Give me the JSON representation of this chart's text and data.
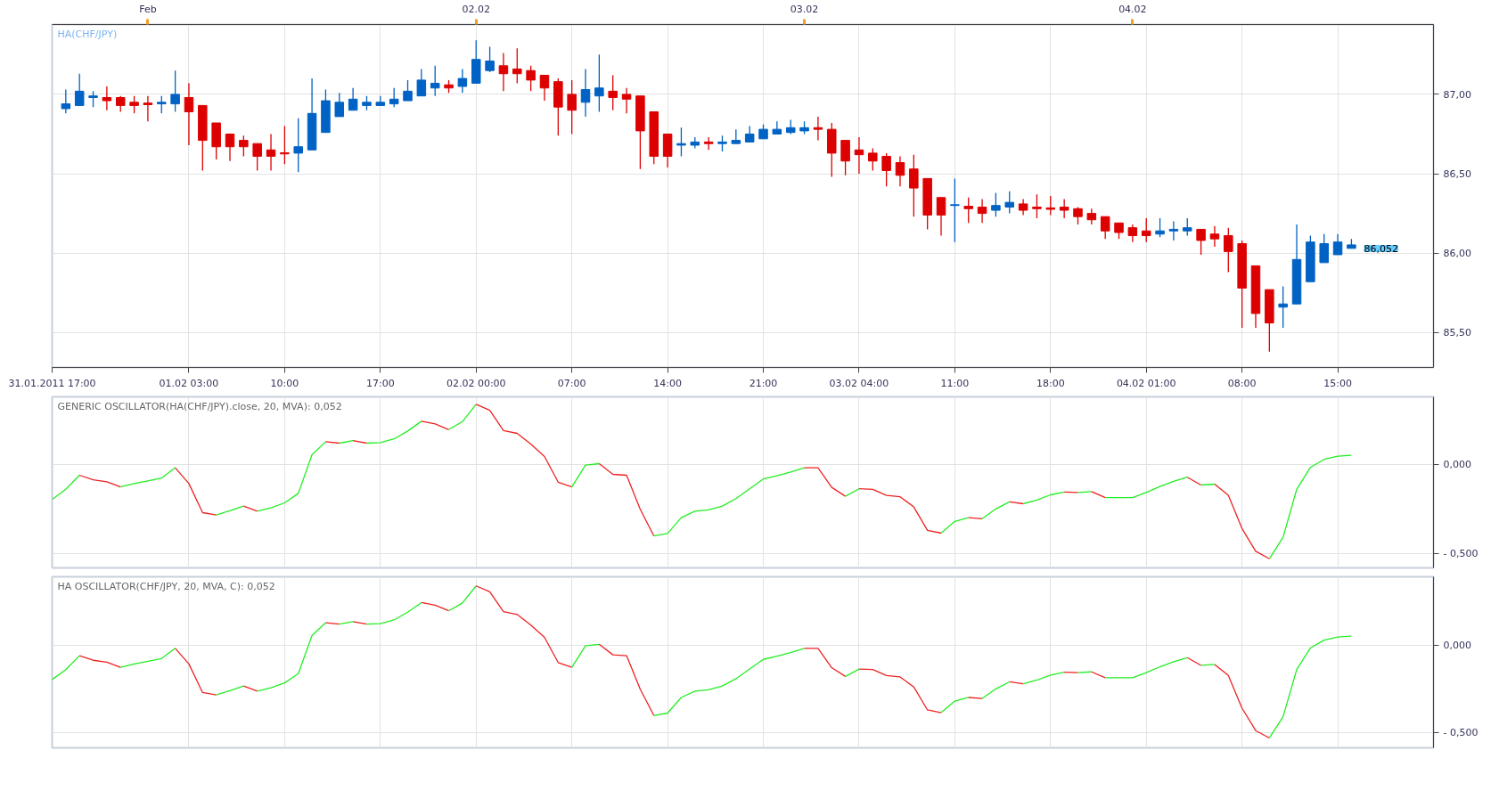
{
  "chart_data": [
    {
      "type": "candlestick",
      "title": "HA(CHF/JPY)",
      "x": [
        "2011-01-31T18:00",
        "2011-01-31T19:00",
        "2011-01-31T20:00",
        "2011-01-31T21:00",
        "2011-01-31T22:00",
        "2011-01-31T23:00",
        "2011-02-01T00:00",
        "2011-02-01T01:00",
        "2011-02-01T02:00",
        "2011-02-01T03:00",
        "2011-02-01T04:00",
        "2011-02-01T05:00",
        "2011-02-01T06:00",
        "2011-02-01T07:00",
        "2011-02-01T08:00",
        "2011-02-01T09:00",
        "2011-02-01T10:00",
        "2011-02-01T11:00",
        "2011-02-01T12:00",
        "2011-02-01T13:00",
        "2011-02-01T14:00",
        "2011-02-01T15:00",
        "2011-02-01T16:00",
        "2011-02-01T17:00",
        "2011-02-01T18:00",
        "2011-02-01T19:00",
        "2011-02-01T20:00",
        "2011-02-01T21:00",
        "2011-02-01T22:00",
        "2011-02-01T23:00",
        "2011-02-02T00:00",
        "2011-02-02T01:00",
        "2011-02-02T02:00",
        "2011-02-02T03:00",
        "2011-02-02T04:00",
        "2011-02-02T05:00",
        "2011-02-02T06:00",
        "2011-02-02T07:00",
        "2011-02-02T08:00",
        "2011-02-02T09:00",
        "2011-02-02T10:00",
        "2011-02-02T11:00",
        "2011-02-02T12:00",
        "2011-02-02T13:00",
        "2011-02-02T14:00",
        "2011-02-02T15:00",
        "2011-02-02T16:00",
        "2011-02-02T17:00",
        "2011-02-02T18:00",
        "2011-02-02T19:00",
        "2011-02-02T20:00",
        "2011-02-02T21:00",
        "2011-02-02T22:00",
        "2011-02-02T23:00",
        "2011-02-03T00:00",
        "2011-02-03T01:00",
        "2011-02-03T02:00",
        "2011-02-03T03:00",
        "2011-02-03T04:00",
        "2011-02-03T05:00",
        "2011-02-03T06:00",
        "2011-02-03T07:00",
        "2011-02-03T08:00",
        "2011-02-03T09:00",
        "2011-02-03T10:00",
        "2011-02-03T11:00",
        "2011-02-03T12:00",
        "2011-02-03T13:00",
        "2011-02-03T14:00",
        "2011-02-03T15:00",
        "2011-02-03T16:00",
        "2011-02-03T17:00",
        "2011-02-03T18:00",
        "2011-02-03T19:00",
        "2011-02-03T20:00",
        "2011-02-03T21:00",
        "2011-02-03T22:00",
        "2011-02-03T23:00",
        "2011-02-04T00:00",
        "2011-02-04T01:00",
        "2011-02-04T02:00",
        "2011-02-04T03:00",
        "2011-02-04T04:00",
        "2011-02-04T05:00",
        "2011-02-04T06:00",
        "2011-02-04T07:00",
        "2011-02-04T08:00",
        "2011-02-04T09:00",
        "2011-02-04T10:00",
        "2011-02-04T11:00",
        "2011-02-04T12:00",
        "2011-02-04T13:00",
        "2011-02-04T14:00",
        "2011-02-04T15:00",
        "2011-02-04T16:00"
      ],
      "ohlc": [
        [
          86.91,
          87.03,
          86.88,
          86.94
        ],
        [
          86.93,
          87.13,
          86.93,
          87.02
        ],
        [
          86.98,
          87.02,
          86.92,
          86.99
        ],
        [
          86.98,
          87.05,
          86.9,
          86.96
        ],
        [
          86.98,
          86.99,
          86.89,
          86.93
        ],
        [
          86.95,
          86.99,
          86.88,
          86.93
        ],
        [
          86.945,
          86.99,
          86.83,
          86.935
        ],
        [
          86.94,
          86.99,
          86.88,
          86.95
        ],
        [
          86.94,
          87.15,
          86.89,
          87.0
        ],
        [
          86.98,
          87.07,
          86.68,
          86.89
        ],
        [
          86.93,
          86.93,
          86.52,
          86.71
        ],
        [
          86.82,
          86.82,
          86.59,
          86.67
        ],
        [
          86.75,
          86.75,
          86.58,
          86.67
        ],
        [
          86.71,
          86.74,
          86.61,
          86.67
        ],
        [
          86.69,
          86.69,
          86.52,
          86.61
        ],
        [
          86.65,
          86.75,
          86.52,
          86.61
        ],
        [
          86.632,
          86.8,
          86.56,
          86.625
        ],
        [
          86.63,
          86.85,
          86.51,
          86.67
        ],
        [
          86.65,
          87.1,
          86.65,
          86.88
        ],
        [
          86.76,
          87.03,
          86.76,
          86.96
        ],
        [
          86.86,
          87.01,
          86.86,
          86.95
        ],
        [
          86.9,
          87.04,
          86.9,
          86.97
        ],
        [
          86.93,
          86.99,
          86.9,
          86.95
        ],
        [
          86.93,
          86.99,
          86.93,
          86.95
        ],
        [
          86.94,
          87.04,
          86.92,
          86.97
        ],
        [
          86.96,
          87.09,
          86.96,
          87.02
        ],
        [
          86.99,
          87.16,
          86.99,
          87.09
        ],
        [
          87.04,
          87.18,
          86.99,
          87.07
        ],
        [
          87.06,
          87.09,
          87.01,
          87.04
        ],
        [
          87.05,
          87.16,
          87.01,
          87.1
        ],
        [
          87.07,
          87.34,
          87.07,
          87.22
        ],
        [
          87.15,
          87.3,
          87.14,
          87.21
        ],
        [
          87.18,
          87.26,
          87.02,
          87.13
        ],
        [
          87.16,
          87.29,
          87.07,
          87.13
        ],
        [
          87.15,
          87.18,
          87.02,
          87.09
        ],
        [
          87.12,
          87.12,
          86.96,
          87.04
        ],
        [
          87.08,
          87.1,
          86.74,
          86.92
        ],
        [
          87.0,
          87.09,
          86.75,
          86.9
        ],
        [
          86.95,
          87.16,
          86.86,
          87.03
        ],
        [
          86.99,
          87.25,
          86.89,
          87.04
        ],
        [
          87.02,
          87.12,
          86.9,
          86.98
        ],
        [
          87.0,
          87.04,
          86.88,
          86.97
        ],
        [
          86.99,
          86.99,
          86.53,
          86.77
        ],
        [
          86.89,
          86.89,
          86.56,
          86.61
        ],
        [
          86.75,
          86.75,
          86.54,
          86.61
        ],
        [
          86.68,
          86.79,
          86.61,
          86.69
        ],
        [
          86.68,
          86.73,
          86.66,
          86.7
        ],
        [
          86.7,
          86.73,
          86.65,
          86.69
        ],
        [
          86.69,
          86.74,
          86.64,
          86.7
        ],
        [
          86.69,
          86.78,
          86.69,
          86.71
        ],
        [
          86.7,
          86.8,
          86.7,
          86.75
        ],
        [
          86.72,
          86.81,
          86.72,
          86.78
        ],
        [
          86.75,
          86.83,
          86.75,
          86.78
        ],
        [
          86.76,
          86.84,
          86.75,
          86.79
        ],
        [
          86.77,
          86.83,
          86.75,
          86.79
        ],
        [
          86.79,
          86.86,
          86.71,
          86.78
        ],
        [
          86.78,
          86.82,
          86.48,
          86.63
        ],
        [
          86.71,
          86.71,
          86.49,
          86.58
        ],
        [
          86.65,
          86.73,
          86.5,
          86.62
        ],
        [
          86.63,
          86.66,
          86.52,
          86.58
        ],
        [
          86.61,
          86.63,
          86.42,
          86.52
        ],
        [
          86.57,
          86.61,
          86.42,
          86.49
        ],
        [
          86.53,
          86.62,
          86.23,
          86.41
        ],
        [
          86.47,
          86.47,
          86.15,
          86.24
        ],
        [
          86.35,
          86.35,
          86.11,
          86.24
        ],
        [
          86.3,
          86.47,
          86.07,
          86.305
        ],
        [
          86.295,
          86.35,
          86.19,
          86.28
        ],
        [
          86.29,
          86.34,
          86.19,
          86.25
        ],
        [
          86.27,
          86.38,
          86.23,
          86.3
        ],
        [
          86.29,
          86.39,
          86.25,
          86.32
        ],
        [
          86.31,
          86.34,
          86.24,
          86.27
        ],
        [
          86.29,
          86.37,
          86.22,
          86.28
        ],
        [
          86.285,
          86.36,
          86.24,
          86.276
        ],
        [
          86.29,
          86.34,
          86.22,
          86.27
        ],
        [
          86.28,
          86.29,
          86.18,
          86.23
        ],
        [
          86.25,
          86.28,
          86.18,
          86.21
        ],
        [
          86.23,
          86.23,
          86.09,
          86.14
        ],
        [
          86.19,
          86.19,
          86.09,
          86.13
        ],
        [
          86.16,
          86.18,
          86.07,
          86.11
        ],
        [
          86.14,
          86.22,
          86.07,
          86.11
        ],
        [
          86.12,
          86.22,
          86.1,
          86.14
        ],
        [
          86.14,
          86.2,
          86.08,
          86.15
        ],
        [
          86.14,
          86.22,
          86.11,
          86.16
        ],
        [
          86.15,
          86.15,
          85.99,
          86.08
        ],
        [
          86.12,
          86.17,
          86.04,
          86.09
        ],
        [
          86.11,
          86.16,
          85.88,
          86.01
        ],
        [
          86.06,
          86.08,
          85.53,
          85.78
        ],
        [
          85.92,
          85.92,
          85.53,
          85.62
        ],
        [
          85.77,
          85.77,
          85.38,
          85.56
        ],
        [
          85.66,
          85.79,
          85.53,
          85.68
        ],
        [
          85.68,
          86.18,
          85.68,
          85.96
        ],
        [
          85.82,
          86.11,
          85.82,
          86.07
        ],
        [
          85.94,
          86.12,
          85.94,
          86.06
        ],
        [
          85.99,
          86.12,
          85.99,
          86.07
        ],
        [
          86.03,
          86.09,
          86.03,
          86.052
        ]
      ],
      "colors": [
        "#0062c4",
        "#0062c4",
        "#0062c4",
        "#dd0000",
        "#dd0000",
        "#dd0000",
        "#dd0000",
        "#0062c4",
        "#0062c4",
        "#dd0000",
        "#dd0000",
        "#dd0000",
        "#dd0000",
        "#dd0000",
        "#dd0000",
        "#dd0000",
        "#dd0000",
        "#0062c4",
        "#0062c4",
        "#0062c4",
        "#0062c4",
        "#0062c4",
        "#0062c4",
        "#0062c4",
        "#0062c4",
        "#0062c4",
        "#0062c4",
        "#0062c4",
        "#dd0000",
        "#0062c4",
        "#0062c4",
        "#0062c4",
        "#dd0000",
        "#dd0000",
        "#dd0000",
        "#dd0000",
        "#dd0000",
        "#dd0000",
        "#0062c4",
        "#0062c4",
        "#dd0000",
        "#dd0000",
        "#dd0000",
        "#dd0000",
        "#dd0000",
        "#0062c4",
        "#0062c4",
        "#dd0000",
        "#0062c4",
        "#0062c4",
        "#0062c4",
        "#0062c4",
        "#0062c4",
        "#0062c4",
        "#0062c4",
        "#dd0000",
        "#dd0000",
        "#dd0000",
        "#dd0000",
        "#dd0000",
        "#dd0000",
        "#dd0000",
        "#dd0000",
        "#dd0000",
        "#dd0000",
        "#0062c4",
        "#dd0000",
        "#dd0000",
        "#0062c4",
        "#0062c4",
        "#dd0000",
        "#dd0000",
        "#dd0000",
        "#dd0000",
        "#dd0000",
        "#dd0000",
        "#dd0000",
        "#dd0000",
        "#dd0000",
        "#dd0000",
        "#0062c4",
        "#0062c4",
        "#0062c4",
        "#dd0000",
        "#dd0000",
        "#dd0000",
        "#dd0000",
        "#dd0000",
        "#dd0000",
        "#0062c4",
        "#0062c4",
        "#0062c4",
        "#0062c4",
        "#0062c4",
        "#0062c4"
      ],
      "xlim": [
        "2011-01-31T17:00",
        "2011-02-04T22:00"
      ],
      "xticks": [
        {
          "value": "2011-01-31T17:00",
          "label": "31.01.2011 17:00"
        },
        {
          "value": "2011-02-01T03:00",
          "label": "01.02 03:00"
        },
        {
          "value": "2011-02-01T10:00",
          "label": "10:00"
        },
        {
          "value": "2011-02-01T17:00",
          "label": "17:00"
        },
        {
          "value": "2011-02-02T00:00",
          "label": "02.02 00:00"
        },
        {
          "value": "2011-02-02T07:00",
          "label": "07:00"
        },
        {
          "value": "2011-02-02T14:00",
          "label": "14:00"
        },
        {
          "value": "2011-02-02T21:00",
          "label": "21:00"
        },
        {
          "value": "2011-02-03T04:00",
          "label": "03.02 04:00"
        },
        {
          "value": "2011-02-03T11:00",
          "label": "11:00"
        },
        {
          "value": "2011-02-03T18:00",
          "label": "18:00"
        },
        {
          "value": "2011-02-04T01:00",
          "label": "04.02 01:00"
        },
        {
          "value": "2011-02-04T08:00",
          "label": "08:00"
        },
        {
          "value": "2011-02-04T15:00",
          "label": "15:00"
        }
      ],
      "x2lim": [
        "2011-01-31T17:00",
        "2011-02-04T22:00"
      ],
      "x2ticks": [
        {
          "value": "2011-02-01T00:00",
          "label": "Feb"
        },
        {
          "value": "2011-02-02T00:00",
          "label": "02.02"
        },
        {
          "value": "2011-02-03T00:00",
          "label": "03.02"
        },
        {
          "value": "2011-02-04T00:00",
          "label": "04.02"
        }
      ],
      "ylim": [
        85.28,
        87.44
      ],
      "yticks": [
        {
          "value": 85.5,
          "label": "85,50"
        },
        {
          "value": 86,
          "label": "86,00"
        },
        {
          "value": 86.5,
          "label": "86,50"
        },
        {
          "value": 87,
          "label": "87,00"
        }
      ],
      "grid": true,
      "annotations": [
        {
          "text": "86,052",
          "x": "2011-02-04T16:00",
          "y": 86.052
        }
      ]
    },
    {
      "type": "line",
      "title": "GENERIC OSCILLATOR(HA(CHF/JPY).close, 20, MVA): 0,052",
      "series": [
        {
          "color": "#22ee22",
          "x": [
            "2011-01-31T17:00",
            "2011-01-31T18:00",
            "2011-01-31T19:00"
          ],
          "values": [
            -0.196,
            -0.139,
            -0.06
          ]
        },
        {
          "color": "#ee2222",
          "x": [
            "2011-01-31T19:00",
            "2011-01-31T20:00",
            "2011-01-31T21:00",
            "2011-01-31T22:00"
          ],
          "values": [
            -0.06,
            -0.086,
            -0.097,
            -0.126
          ]
        },
        {
          "color": "#22ee22",
          "x": [
            "2011-01-31T22:00",
            "2011-01-31T23:00",
            "2011-02-01T00:00",
            "2011-02-01T01:00",
            "2011-02-01T02:00"
          ],
          "values": [
            -0.126,
            -0.107,
            -0.092,
            -0.076,
            -0.018
          ]
        },
        {
          "color": "#ee2222",
          "x": [
            "2011-02-01T02:00",
            "2011-02-01T03:00",
            "2011-02-01T04:00",
            "2011-02-01T05:00"
          ],
          "values": [
            -0.018,
            -0.107,
            -0.27,
            -0.283
          ]
        },
        {
          "color": "#22ee22",
          "x": [
            "2011-02-01T05:00",
            "2011-02-01T06:00",
            "2011-02-01T07:00"
          ],
          "values": [
            -0.283,
            -0.259,
            -0.233
          ]
        },
        {
          "color": "#ee2222",
          "x": [
            "2011-02-01T07:00",
            "2011-02-01T08:00"
          ],
          "values": [
            -0.233,
            -0.262
          ]
        },
        {
          "color": "#22ee22",
          "x": [
            "2011-02-01T08:00",
            "2011-02-01T09:00",
            "2011-02-01T10:00",
            "2011-02-01T11:00",
            "2011-02-01T12:00",
            "2011-02-01T13:00"
          ],
          "values": [
            -0.262,
            -0.243,
            -0.215,
            -0.162,
            0.055,
            0.128
          ]
        },
        {
          "color": "#ee2222",
          "x": [
            "2011-02-01T13:00",
            "2011-02-01T14:00"
          ],
          "values": [
            0.128,
            0.12
          ]
        },
        {
          "color": "#22ee22",
          "x": [
            "2011-02-01T14:00",
            "2011-02-01T15:00"
          ],
          "values": [
            0.12,
            0.134
          ]
        },
        {
          "color": "#ee2222",
          "x": [
            "2011-02-01T15:00",
            "2011-02-01T16:00"
          ],
          "values": [
            0.134,
            0.12
          ]
        },
        {
          "color": "#22ee22",
          "x": [
            "2011-02-01T16:00",
            "2011-02-01T17:00",
            "2011-02-01T18:00",
            "2011-02-01T19:00",
            "2011-02-01T20:00"
          ],
          "values": [
            0.12,
            0.123,
            0.144,
            0.188,
            0.243
          ]
        },
        {
          "color": "#ee2222",
          "x": [
            "2011-02-01T20:00",
            "2011-02-01T21:00",
            "2011-02-01T22:00"
          ],
          "values": [
            0.243,
            0.228,
            0.196
          ]
        },
        {
          "color": "#22ee22",
          "x": [
            "2011-02-01T22:00",
            "2011-02-01T23:00",
            "2011-02-02T00:00"
          ],
          "values": [
            0.196,
            0.241,
            0.338
          ]
        },
        {
          "color": "#ee2222",
          "x": [
            "2011-02-02T00:00",
            "2011-02-02T01:00",
            "2011-02-02T02:00",
            "2011-02-02T03:00",
            "2011-02-02T04:00",
            "2011-02-02T05:00",
            "2011-02-02T06:00",
            "2011-02-02T07:00"
          ],
          "values": [
            0.338,
            0.304,
            0.191,
            0.175,
            0.115,
            0.045,
            -0.099,
            -0.126
          ]
        },
        {
          "color": "#22ee22",
          "x": [
            "2011-02-02T07:00",
            "2011-02-02T08:00",
            "2011-02-02T09:00"
          ],
          "values": [
            -0.126,
            -0.003,
            0.005
          ]
        },
        {
          "color": "#ee2222",
          "x": [
            "2011-02-02T09:00",
            "2011-02-02T10:00",
            "2011-02-02T11:00",
            "2011-02-02T12:00",
            "2011-02-02T13:00"
          ],
          "values": [
            0.005,
            -0.055,
            -0.06,
            -0.251,
            -0.401
          ]
        },
        {
          "color": "#22ee22",
          "x": [
            "2011-02-02T13:00",
            "2011-02-02T14:00",
            "2011-02-02T15:00",
            "2011-02-02T16:00",
            "2011-02-02T17:00",
            "2011-02-02T18:00",
            "2011-02-02T19:00",
            "2011-02-02T20:00",
            "2011-02-02T21:00",
            "2011-02-02T22:00",
            "2011-02-02T23:00",
            "2011-02-03T00:00"
          ],
          "values": [
            -0.401,
            -0.387,
            -0.298,
            -0.262,
            -0.254,
            -0.233,
            -0.191,
            -0.136,
            -0.081,
            -0.063,
            -0.042,
            -0.018
          ]
        },
        {
          "color": "#ee2222",
          "x": [
            "2011-02-03T00:00",
            "2011-02-03T01:00",
            "2011-02-03T02:00",
            "2011-02-03T03:00"
          ],
          "values": [
            -0.018,
            -0.018,
            -0.128,
            -0.178
          ]
        },
        {
          "color": "#22ee22",
          "x": [
            "2011-02-03T03:00",
            "2011-02-03T04:00"
          ],
          "values": [
            -0.178,
            -0.136
          ]
        },
        {
          "color": "#ee2222",
          "x": [
            "2011-02-03T04:00",
            "2011-02-03T05:00",
            "2011-02-03T06:00",
            "2011-02-03T07:00",
            "2011-02-03T08:00",
            "2011-02-03T09:00",
            "2011-02-03T10:00"
          ],
          "values": [
            -0.136,
            -0.139,
            -0.173,
            -0.181,
            -0.238,
            -0.369,
            -0.385
          ]
        },
        {
          "color": "#22ee22",
          "x": [
            "2011-02-03T10:00",
            "2011-02-03T11:00",
            "2011-02-03T12:00"
          ],
          "values": [
            -0.385,
            -0.319,
            -0.298
          ]
        },
        {
          "color": "#ee2222",
          "x": [
            "2011-02-03T12:00",
            "2011-02-03T13:00"
          ],
          "values": [
            -0.298,
            -0.304
          ]
        },
        {
          "color": "#22ee22",
          "x": [
            "2011-02-03T13:00",
            "2011-02-03T14:00",
            "2011-02-03T15:00"
          ],
          "values": [
            -0.304,
            -0.249,
            -0.209
          ]
        },
        {
          "color": "#ee2222",
          "x": [
            "2011-02-03T15:00",
            "2011-02-03T16:00"
          ],
          "values": [
            -0.209,
            -0.22
          ]
        },
        {
          "color": "#22ee22",
          "x": [
            "2011-02-03T16:00",
            "2011-02-03T17:00",
            "2011-02-03T18:00",
            "2011-02-03T19:00"
          ],
          "values": [
            -0.22,
            -0.199,
            -0.17,
            -0.154
          ]
        },
        {
          "color": "#ee2222",
          "x": [
            "2011-02-03T19:00",
            "2011-02-03T20:00"
          ],
          "values": [
            -0.154,
            -0.157
          ]
        },
        {
          "color": "#22ee22",
          "x": [
            "2011-02-03T20:00",
            "2011-02-03T21:00"
          ],
          "values": [
            -0.157,
            -0.152
          ]
        },
        {
          "color": "#ee2222",
          "x": [
            "2011-02-03T21:00",
            "2011-02-03T22:00"
          ],
          "values": [
            -0.152,
            -0.186
          ]
        },
        {
          "color": "#22ee22",
          "x": [
            "2011-02-03T22:00",
            "2011-02-03T23:00",
            "2011-02-04T00:00",
            "2011-02-04T01:00",
            "2011-02-04T02:00",
            "2011-02-04T03:00",
            "2011-02-04T04:00"
          ],
          "values": [
            -0.186,
            -0.186,
            -0.186,
            -0.157,
            -0.123,
            -0.094,
            -0.071
          ]
        },
        {
          "color": "#ee2222",
          "x": [
            "2011-02-04T04:00",
            "2011-02-04T05:00"
          ],
          "values": [
            -0.071,
            -0.115
          ]
        },
        {
          "color": "#22ee22",
          "x": [
            "2011-02-04T05:00",
            "2011-02-04T06:00"
          ],
          "values": [
            -0.115,
            -0.11
          ]
        },
        {
          "color": "#ee2222",
          "x": [
            "2011-02-04T06:00",
            "2011-02-04T07:00",
            "2011-02-04T08:00",
            "2011-02-04T09:00",
            "2011-02-04T10:00"
          ],
          "values": [
            -0.11,
            -0.173,
            -0.359,
            -0.487,
            -0.529
          ]
        },
        {
          "color": "#22ee22",
          "x": [
            "2011-02-04T10:00",
            "2011-02-04T11:00",
            "2011-02-04T12:00",
            "2011-02-04T13:00",
            "2011-02-04T14:00",
            "2011-02-04T15:00",
            "2011-02-04T16:00"
          ],
          "values": [
            -0.529,
            -0.408,
            -0.139,
            -0.016,
            0.029,
            0.047,
            0.052
          ]
        }
      ],
      "xlim": [
        "2011-01-31T17:00",
        "2011-02-04T22:00"
      ],
      "xticks": [
        {
          "value": "2011-02-01T03:00",
          "label": null
        },
        {
          "value": "2011-02-01T10:00",
          "label": null
        },
        {
          "value": "2011-02-01T17:00",
          "label": null
        },
        {
          "value": "2011-02-02T00:00",
          "label": null
        },
        {
          "value": "2011-02-02T07:00",
          "label": null
        },
        {
          "value": "2011-02-02T14:00",
          "label": null
        },
        {
          "value": "2011-02-02T21:00",
          "label": null
        },
        {
          "value": "2011-02-03T04:00",
          "label": null
        },
        {
          "value": "2011-02-03T11:00",
          "label": null
        },
        {
          "value": "2011-02-03T18:00",
          "label": null
        },
        {
          "value": "2011-02-04T01:00",
          "label": null
        },
        {
          "value": "2011-02-04T08:00",
          "label": null
        },
        {
          "value": "2011-02-04T15:00",
          "label": null
        }
      ],
      "ylim": [
        -0.58,
        0.38
      ],
      "yticks": [
        {
          "value": -0.5,
          "label": "- 0,500"
        },
        {
          "value": 0,
          "label": "0,000"
        }
      ],
      "grid": true,
      "tick_labels": "y"
    },
    {
      "type": "line",
      "title": "HA  OSCILLATOR(CHF/JPY, 20, MVA, C): 0,052",
      "series": [
        {
          "color": "#22ee22",
          "x": [
            "2011-01-31T17:00",
            "2011-01-31T18:00",
            "2011-01-31T19:00"
          ],
          "values": [
            -0.196,
            -0.139,
            -0.06
          ]
        },
        {
          "color": "#ee2222",
          "x": [
            "2011-01-31T19:00",
            "2011-01-31T20:00",
            "2011-01-31T21:00",
            "2011-01-31T22:00"
          ],
          "values": [
            -0.06,
            -0.086,
            -0.097,
            -0.126
          ]
        },
        {
          "color": "#22ee22",
          "x": [
            "2011-01-31T22:00",
            "2011-01-31T23:00",
            "2011-02-01T00:00",
            "2011-02-01T01:00",
            "2011-02-01T02:00"
          ],
          "values": [
            -0.126,
            -0.107,
            -0.092,
            -0.076,
            -0.018
          ]
        },
        {
          "color": "#ee2222",
          "x": [
            "2011-02-01T02:00",
            "2011-02-01T03:00",
            "2011-02-01T04:00",
            "2011-02-01T05:00"
          ],
          "values": [
            -0.018,
            -0.107,
            -0.27,
            -0.283
          ]
        },
        {
          "color": "#22ee22",
          "x": [
            "2011-02-01T05:00",
            "2011-02-01T06:00",
            "2011-02-01T07:00"
          ],
          "values": [
            -0.283,
            -0.259,
            -0.233
          ]
        },
        {
          "color": "#ee2222",
          "x": [
            "2011-02-01T07:00",
            "2011-02-01T08:00"
          ],
          "values": [
            -0.233,
            -0.262
          ]
        },
        {
          "color": "#22ee22",
          "x": [
            "2011-02-01T08:00",
            "2011-02-01T09:00",
            "2011-02-01T10:00",
            "2011-02-01T11:00",
            "2011-02-01T12:00",
            "2011-02-01T13:00"
          ],
          "values": [
            -0.262,
            -0.243,
            -0.215,
            -0.162,
            0.055,
            0.128
          ]
        },
        {
          "color": "#ee2222",
          "x": [
            "2011-02-01T13:00",
            "2011-02-01T14:00"
          ],
          "values": [
            0.128,
            0.12
          ]
        },
        {
          "color": "#22ee22",
          "x": [
            "2011-02-01T14:00",
            "2011-02-01T15:00"
          ],
          "values": [
            0.12,
            0.134
          ]
        },
        {
          "color": "#ee2222",
          "x": [
            "2011-02-01T15:00",
            "2011-02-01T16:00"
          ],
          "values": [
            0.134,
            0.12
          ]
        },
        {
          "color": "#22ee22",
          "x": [
            "2011-02-01T16:00",
            "2011-02-01T17:00",
            "2011-02-01T18:00",
            "2011-02-01T19:00",
            "2011-02-01T20:00"
          ],
          "values": [
            0.12,
            0.123,
            0.144,
            0.188,
            0.243
          ]
        },
        {
          "color": "#ee2222",
          "x": [
            "2011-02-01T20:00",
            "2011-02-01T21:00",
            "2011-02-01T22:00"
          ],
          "values": [
            0.243,
            0.228,
            0.196
          ]
        },
        {
          "color": "#22ee22",
          "x": [
            "2011-02-01T22:00",
            "2011-02-01T23:00",
            "2011-02-02T00:00"
          ],
          "values": [
            0.196,
            0.241,
            0.338
          ]
        },
        {
          "color": "#ee2222",
          "x": [
            "2011-02-02T00:00",
            "2011-02-02T01:00",
            "2011-02-02T02:00",
            "2011-02-02T03:00",
            "2011-02-02T04:00",
            "2011-02-02T05:00",
            "2011-02-02T06:00",
            "2011-02-02T07:00"
          ],
          "values": [
            0.338,
            0.304,
            0.191,
            0.175,
            0.115,
            0.045,
            -0.099,
            -0.126
          ]
        },
        {
          "color": "#22ee22",
          "x": [
            "2011-02-02T07:00",
            "2011-02-02T08:00",
            "2011-02-02T09:00"
          ],
          "values": [
            -0.126,
            -0.003,
            0.005
          ]
        },
        {
          "color": "#ee2222",
          "x": [
            "2011-02-02T09:00",
            "2011-02-02T10:00",
            "2011-02-02T11:00",
            "2011-02-02T12:00",
            "2011-02-02T13:00"
          ],
          "values": [
            0.005,
            -0.055,
            -0.06,
            -0.251,
            -0.401
          ]
        },
        {
          "color": "#22ee22",
          "x": [
            "2011-02-02T13:00",
            "2011-02-02T14:00",
            "2011-02-02T15:00",
            "2011-02-02T16:00",
            "2011-02-02T17:00",
            "2011-02-02T18:00",
            "2011-02-02T19:00",
            "2011-02-02T20:00",
            "2011-02-02T21:00",
            "2011-02-02T22:00",
            "2011-02-02T23:00",
            "2011-02-03T00:00"
          ],
          "values": [
            -0.401,
            -0.387,
            -0.298,
            -0.262,
            -0.254,
            -0.233,
            -0.191,
            -0.136,
            -0.081,
            -0.063,
            -0.042,
            -0.018
          ]
        },
        {
          "color": "#ee2222",
          "x": [
            "2011-02-03T00:00",
            "2011-02-03T01:00",
            "2011-02-03T02:00",
            "2011-02-03T03:00"
          ],
          "values": [
            -0.018,
            -0.018,
            -0.128,
            -0.178
          ]
        },
        {
          "color": "#22ee22",
          "x": [
            "2011-02-03T03:00",
            "2011-02-03T04:00"
          ],
          "values": [
            -0.178,
            -0.136
          ]
        },
        {
          "color": "#ee2222",
          "x": [
            "2011-02-03T04:00",
            "2011-02-03T05:00",
            "2011-02-03T06:00",
            "2011-02-03T07:00",
            "2011-02-03T08:00",
            "2011-02-03T09:00",
            "2011-02-03T10:00"
          ],
          "values": [
            -0.136,
            -0.139,
            -0.173,
            -0.181,
            -0.238,
            -0.369,
            -0.385
          ]
        },
        {
          "color": "#22ee22",
          "x": [
            "2011-02-03T10:00",
            "2011-02-03T11:00",
            "2011-02-03T12:00"
          ],
          "values": [
            -0.385,
            -0.319,
            -0.298
          ]
        },
        {
          "color": "#ee2222",
          "x": [
            "2011-02-03T12:00",
            "2011-02-03T13:00"
          ],
          "values": [
            -0.298,
            -0.304
          ]
        },
        {
          "color": "#22ee22",
          "x": [
            "2011-02-03T13:00",
            "2011-02-03T14:00",
            "2011-02-03T15:00"
          ],
          "values": [
            -0.304,
            -0.249,
            -0.209
          ]
        },
        {
          "color": "#ee2222",
          "x": [
            "2011-02-03T15:00",
            "2011-02-03T16:00"
          ],
          "values": [
            -0.209,
            -0.22
          ]
        },
        {
          "color": "#22ee22",
          "x": [
            "2011-02-03T16:00",
            "2011-02-03T17:00",
            "2011-02-03T18:00",
            "2011-02-03T19:00"
          ],
          "values": [
            -0.22,
            -0.199,
            -0.17,
            -0.154
          ]
        },
        {
          "color": "#ee2222",
          "x": [
            "2011-02-03T19:00",
            "2011-02-03T20:00"
          ],
          "values": [
            -0.154,
            -0.157
          ]
        },
        {
          "color": "#22ee22",
          "x": [
            "2011-02-03T20:00",
            "2011-02-03T21:00"
          ],
          "values": [
            -0.157,
            -0.152
          ]
        },
        {
          "color": "#ee2222",
          "x": [
            "2011-02-03T21:00",
            "2011-02-03T22:00"
          ],
          "values": [
            -0.152,
            -0.186
          ]
        },
        {
          "color": "#22ee22",
          "x": [
            "2011-02-03T22:00",
            "2011-02-03T23:00",
            "2011-02-04T00:00",
            "2011-02-04T01:00",
            "2011-02-04T02:00",
            "2011-02-04T03:00",
            "2011-02-04T04:00"
          ],
          "values": [
            -0.186,
            -0.186,
            -0.186,
            -0.157,
            -0.123,
            -0.094,
            -0.071
          ]
        },
        {
          "color": "#ee2222",
          "x": [
            "2011-02-04T04:00",
            "2011-02-04T05:00"
          ],
          "values": [
            -0.071,
            -0.115
          ]
        },
        {
          "color": "#22ee22",
          "x": [
            "2011-02-04T05:00",
            "2011-02-04T06:00"
          ],
          "values": [
            -0.115,
            -0.11
          ]
        },
        {
          "color": "#ee2222",
          "x": [
            "2011-02-04T06:00",
            "2011-02-04T07:00",
            "2011-02-04T08:00",
            "2011-02-04T09:00",
            "2011-02-04T10:00"
          ],
          "values": [
            -0.11,
            -0.173,
            -0.359,
            -0.487,
            -0.529
          ]
        },
        {
          "color": "#22ee22",
          "x": [
            "2011-02-04T10:00",
            "2011-02-04T11:00",
            "2011-02-04T12:00",
            "2011-02-04T13:00",
            "2011-02-04T14:00",
            "2011-02-04T15:00",
            "2011-02-04T16:00"
          ],
          "values": [
            -0.529,
            -0.408,
            -0.139,
            -0.016,
            0.029,
            0.047,
            0.052
          ]
        }
      ],
      "xlim": [
        "2011-01-31T17:00",
        "2011-02-04T22:00"
      ],
      "xticks": [
        {
          "value": "2011-02-01T03:00",
          "label": null
        },
        {
          "value": "2011-02-01T10:00",
          "label": null
        },
        {
          "value": "2011-02-01T17:00",
          "label": null
        },
        {
          "value": "2011-02-02T00:00",
          "label": null
        },
        {
          "value": "2011-02-02T07:00",
          "label": null
        },
        {
          "value": "2011-02-02T14:00",
          "label": null
        },
        {
          "value": "2011-02-02T21:00",
          "label": null
        },
        {
          "value": "2011-02-03T04:00",
          "label": null
        },
        {
          "value": "2011-02-03T11:00",
          "label": null
        },
        {
          "value": "2011-02-03T18:00",
          "label": null
        },
        {
          "value": "2011-02-04T01:00",
          "label": null
        },
        {
          "value": "2011-02-04T08:00",
          "label": null
        },
        {
          "value": "2011-02-04T15:00",
          "label": null
        }
      ],
      "ylim": [
        -0.585,
        0.39
      ],
      "yticks": [
        {
          "value": -0.5,
          "label": "- 0,500"
        },
        {
          "value": 0,
          "label": "0,000"
        }
      ],
      "grid": true,
      "tick_labels": "y"
    }
  ]
}
